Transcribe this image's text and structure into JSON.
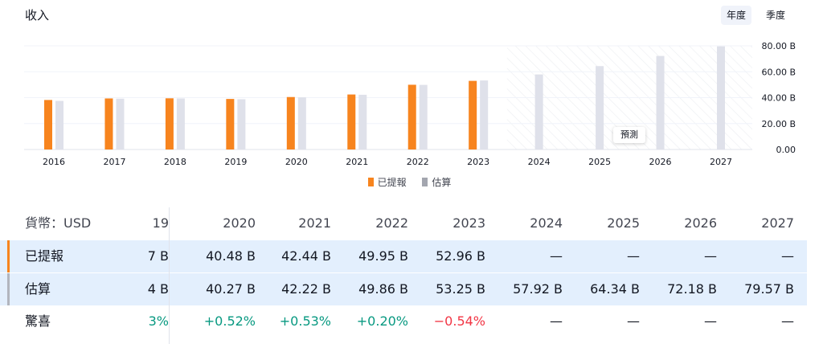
{
  "header": {
    "title": "收入",
    "tabs": [
      "年度",
      "季度"
    ],
    "active_tab": 0
  },
  "chart_data": {
    "type": "bar",
    "categories": [
      "2016",
      "2017",
      "2018",
      "2019",
      "2020",
      "2021",
      "2022",
      "2023",
      "2024",
      "2025",
      "2026",
      "2027"
    ],
    "series": [
      {
        "name": "已提報",
        "color": "#f7841e",
        "values": [
          38.2,
          39.4,
          39.5,
          39.0,
          40.48,
          42.44,
          49.95,
          52.96,
          null,
          null,
          null,
          null
        ]
      },
      {
        "name": "估算",
        "color": "#dfe1ea",
        "values": [
          37.5,
          39.2,
          39.4,
          38.8,
          40.27,
          42.22,
          49.86,
          53.25,
          57.92,
          64.34,
          72.18,
          79.57
        ]
      }
    ],
    "y_ticks": [
      "80.00 B",
      "60.00 B",
      "40.00 B",
      "20.00 B",
      "0.00"
    ],
    "ylim": [
      0,
      80
    ],
    "forecast_label": "預測",
    "forecast_start_category": "2024"
  },
  "table": {
    "currency_label": "貨幣：USD",
    "clipped_header": "19",
    "columns": [
      "2020",
      "2021",
      "2022",
      "2023",
      "2024",
      "2025",
      "2026",
      "2027"
    ],
    "rows": [
      {
        "label": "已提報",
        "clipped": "7 B",
        "bar_color": "#f7841e",
        "values": [
          "40.48 B",
          "42.44 B",
          "49.95 B",
          "52.96 B",
          "—",
          "—",
          "—",
          "—"
        ]
      },
      {
        "label": "估算",
        "clipped": "4 B",
        "bar_color": "#b2b5be",
        "values": [
          "40.27 B",
          "42.22 B",
          "49.86 B",
          "53.25 B",
          "57.92 B",
          "64.34 B",
          "72.18 B",
          "79.57 B"
        ]
      },
      {
        "label": "驚喜",
        "clipped": "3%",
        "values": [
          "+0.52%",
          "+0.53%",
          "+0.20%",
          "−0.54%",
          "—",
          "—",
          "—",
          "—"
        ]
      }
    ]
  }
}
